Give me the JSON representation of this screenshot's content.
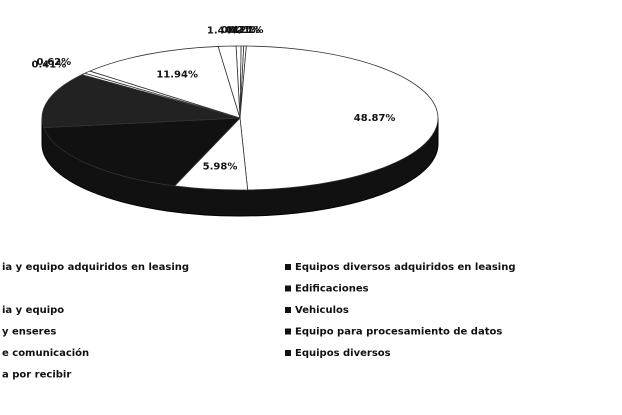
{
  "chart_data": {
    "type": "pie",
    "categories": [
      "ia y equipo adquiridos en leasing",
      null,
      "ia y equipo",
      "y enseres",
      "e comunicación",
      "a por recibir",
      "Equipos diversos adquiridos en leasing",
      "Edificaciones",
      "Vehiculos",
      "Equipo para procesamiento de datos",
      "Equipos diversos"
    ],
    "values": [
      0.41,
      0.21,
      0.21,
      48.87,
      5.98,
      17.5,
      12.41,
      0.41,
      0.62,
      11.94,
      1.44
    ],
    "value_labels": [
      "0.41%",
      "0.21%",
      "0.21%",
      "48.87%",
      "5.98%",
      null,
      null,
      "0.41%",
      "0.62%",
      "11.94%",
      "1.44%"
    ],
    "colors": [
      "#ffffff",
      "#ffffff",
      "#ffffff",
      "#ffffff",
      "#ffffff",
      "#111111",
      "#222222",
      "#ffffff",
      "#ffffff",
      "#ffffff",
      "#ffffff"
    ]
  }
}
